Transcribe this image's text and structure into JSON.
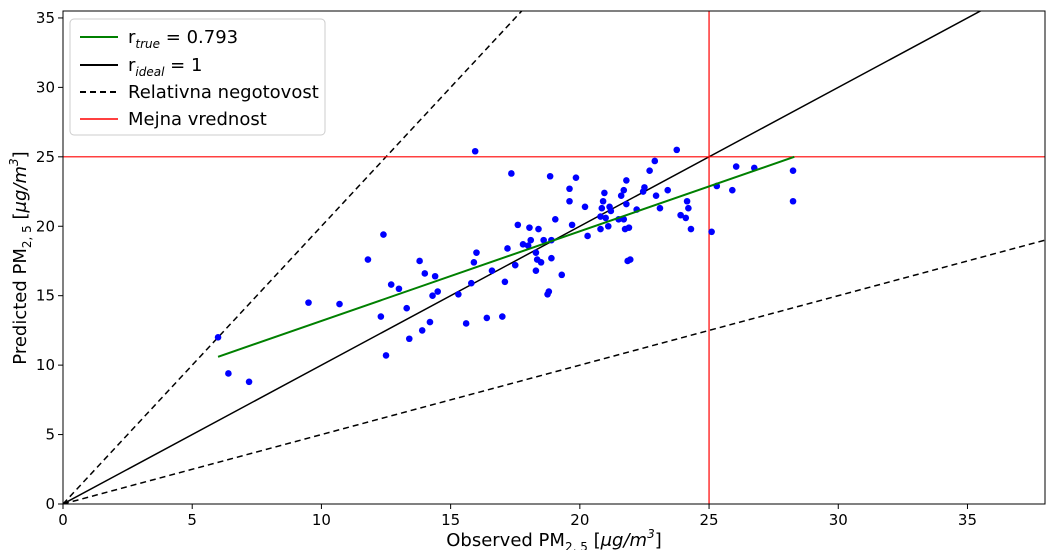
{
  "chart_data": {
    "type": "scatter",
    "xlim": [
      0,
      38
    ],
    "ylim": [
      0,
      35.5
    ],
    "x_ticks": [
      0,
      5,
      10,
      15,
      20,
      25,
      30,
      35
    ],
    "y_ticks": [
      0,
      5,
      10,
      15,
      20,
      25,
      30,
      35
    ],
    "grid": false,
    "legend_position": "top-left",
    "xlabel": {
      "main": "Observed PM",
      "sub": "2, 5",
      "unit_open": " [",
      "unit_mu": "μg/m",
      "unit_sup": "3",
      "unit_close": "]"
    },
    "ylabel": {
      "main": "Predicted PM",
      "sub": "2, 5",
      "unit_open": " [",
      "unit_mu": "μg/m",
      "unit_sup": "3",
      "unit_close": "]"
    },
    "colors": {
      "points": "#0000ff",
      "fit": "#008000",
      "ideal": "#000000",
      "uncertainty": "#000000",
      "limit": "#ff0000"
    },
    "legend": [
      {
        "key": "true",
        "symbol": "r",
        "subscript": "true",
        "text": " = 0.793",
        "color": "#008000",
        "style": "solid"
      },
      {
        "key": "ideal",
        "symbol": "r",
        "subscript": "ideal",
        "text": " = 1",
        "color": "#000000",
        "style": "solid"
      },
      {
        "key": "uncertainty",
        "text": "Relativna negotovost",
        "color": "#000000",
        "style": "dashed"
      },
      {
        "key": "limit",
        "text": "Mejna vrednost",
        "color": "#ff0000",
        "style": "solid"
      }
    ],
    "fit_line": {
      "x": [
        6.0,
        28.3
      ],
      "y": [
        10.6,
        25.0
      ]
    },
    "ideal_line": {
      "slope": 1
    },
    "uncertainty_lines": {
      "slopes": [
        2,
        0.5
      ]
    },
    "limit_value": 25,
    "points": [
      [
        6.0,
        12.0
      ],
      [
        6.4,
        9.4
      ],
      [
        7.2,
        8.8
      ],
      [
        9.5,
        14.5
      ],
      [
        10.7,
        14.4
      ],
      [
        11.8,
        17.6
      ],
      [
        12.3,
        13.5
      ],
      [
        12.4,
        19.4
      ],
      [
        12.5,
        10.7
      ],
      [
        12.7,
        15.8
      ],
      [
        13.0,
        15.5
      ],
      [
        13.3,
        14.1
      ],
      [
        13.4,
        11.9
      ],
      [
        13.8,
        17.5
      ],
      [
        13.9,
        12.5
      ],
      [
        14.0,
        16.6
      ],
      [
        14.2,
        13.1
      ],
      [
        14.3,
        15.0
      ],
      [
        14.4,
        16.4
      ],
      [
        14.5,
        15.3
      ],
      [
        15.3,
        15.1
      ],
      [
        15.6,
        13.0
      ],
      [
        15.8,
        15.9
      ],
      [
        15.9,
        17.4
      ],
      [
        15.95,
        25.4
      ],
      [
        16.0,
        18.1
      ],
      [
        16.4,
        13.4
      ],
      [
        16.6,
        16.8
      ],
      [
        17.0,
        13.5
      ],
      [
        17.1,
        16.0
      ],
      [
        17.2,
        18.4
      ],
      [
        17.35,
        23.8
      ],
      [
        17.5,
        17.2
      ],
      [
        17.6,
        20.1
      ],
      [
        17.8,
        18.7
      ],
      [
        18.0,
        18.6
      ],
      [
        18.05,
        19.9
      ],
      [
        18.1,
        19.0
      ],
      [
        18.3,
        16.8
      ],
      [
        18.3,
        18.1
      ],
      [
        18.35,
        17.6
      ],
      [
        18.4,
        19.8
      ],
      [
        18.5,
        17.4
      ],
      [
        18.6,
        19.0
      ],
      [
        18.75,
        15.1
      ],
      [
        18.8,
        15.3
      ],
      [
        18.85,
        23.6
      ],
      [
        18.9,
        17.7
      ],
      [
        18.9,
        19.0
      ],
      [
        19.05,
        20.5
      ],
      [
        19.3,
        16.5
      ],
      [
        19.6,
        22.7
      ],
      [
        19.6,
        21.8
      ],
      [
        19.7,
        20.1
      ],
      [
        19.85,
        23.5
      ],
      [
        20.2,
        21.4
      ],
      [
        20.3,
        19.3
      ],
      [
        20.8,
        19.8
      ],
      [
        20.8,
        20.7
      ],
      [
        20.85,
        21.3
      ],
      [
        20.9,
        21.8
      ],
      [
        20.95,
        22.4
      ],
      [
        21.0,
        20.6
      ],
      [
        21.1,
        20.0
      ],
      [
        21.15,
        21.4
      ],
      [
        21.2,
        21.1
      ],
      [
        21.5,
        20.5
      ],
      [
        21.6,
        22.2
      ],
      [
        21.7,
        22.6
      ],
      [
        21.7,
        20.5
      ],
      [
        21.75,
        19.8
      ],
      [
        21.8,
        23.3
      ],
      [
        21.8,
        21.6
      ],
      [
        21.85,
        17.5
      ],
      [
        21.9,
        19.9
      ],
      [
        21.95,
        17.6
      ],
      [
        22.2,
        21.2
      ],
      [
        22.45,
        22.5
      ],
      [
        22.5,
        22.8
      ],
      [
        22.7,
        24.0
      ],
      [
        22.9,
        24.7
      ],
      [
        22.95,
        22.2
      ],
      [
        23.1,
        21.3
      ],
      [
        23.4,
        22.6
      ],
      [
        23.75,
        25.5
      ],
      [
        23.9,
        20.8
      ],
      [
        24.1,
        20.6
      ],
      [
        24.15,
        21.8
      ],
      [
        24.2,
        21.3
      ],
      [
        24.3,
        19.8
      ],
      [
        25.1,
        19.6
      ],
      [
        25.3,
        22.9
      ],
      [
        25.9,
        22.6
      ],
      [
        26.05,
        24.3
      ],
      [
        26.75,
        24.2
      ],
      [
        28.25,
        24.0
      ],
      [
        28.25,
        21.8
      ]
    ]
  }
}
